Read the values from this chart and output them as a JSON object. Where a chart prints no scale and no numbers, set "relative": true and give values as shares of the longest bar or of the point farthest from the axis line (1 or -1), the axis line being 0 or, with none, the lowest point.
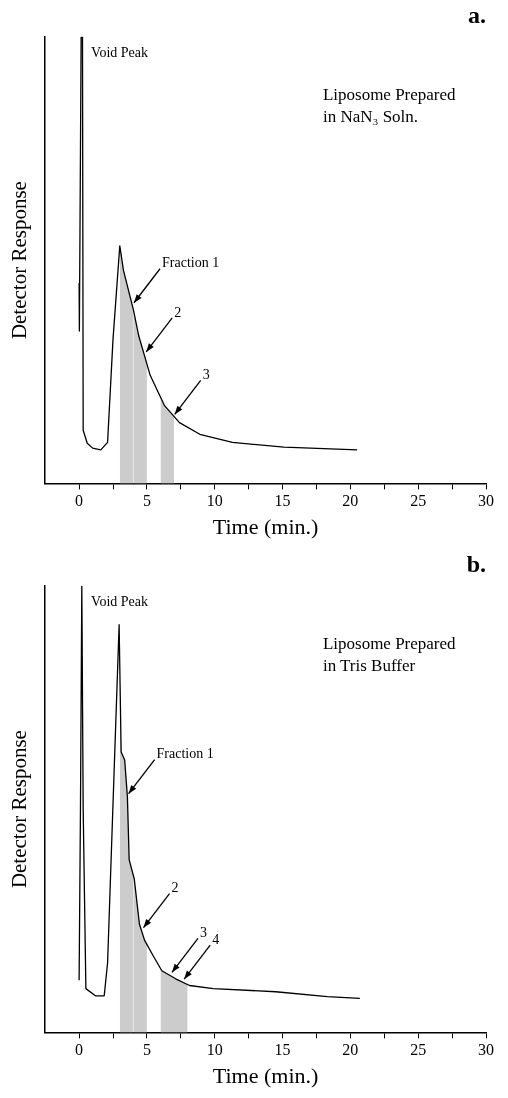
{
  "chart_data": [
    {
      "type": "line",
      "title": "a.",
      "xlabel": "Time (min.)",
      "ylabel": "Detector Response",
      "relative": true,
      "grid": false,
      "legend": false,
      "marker": "none",
      "line_style": "solid",
      "x": [
        0,
        0.02,
        0.15,
        0.25,
        0.3,
        0.6,
        1.0,
        1.6,
        2.1,
        2.5,
        3.0,
        3.27,
        4.0,
        4.4,
        5.24,
        6.3,
        7.4,
        8.9,
        11.3,
        15.1,
        20.5
      ],
      "series": [
        {
          "color": "#000000",
          "values": [
            0.448,
            0.341,
            1.0,
            1.0,
            0.119,
            0.09,
            0.079,
            0.075,
            0.092,
            0.323,
            0.532,
            0.477,
            0.389,
            0.33,
            0.242,
            0.174,
            0.136,
            0.11,
            0.092,
            0.081,
            0.075
          ]
        },
        {
          "type": "area",
          "color": "#cccccc",
          "x": [
            3,
            3.27,
            4
          ],
          "values": [
            0.532,
            0.477,
            0.389
          ]
        },
        {
          "type": "area",
          "color": "#cccccc",
          "x": [
            4,
            4.4,
            5
          ],
          "values": [
            0.389,
            0.33,
            0.263
          ]
        },
        {
          "type": "area",
          "color": "#cccccc",
          "x": [
            6,
            6.3,
            7
          ],
          "values": [
            0.19,
            0.174,
            0.15
          ]
        }
      ],
      "xlim": [
        -2.5,
        30
      ],
      "xticks": [
        0,
        {
          "value": 2.5,
          "label": null
        },
        5,
        {
          "value": 7.5,
          "label": null
        },
        10,
        {
          "value": 12.5,
          "label": null
        },
        15,
        {
          "value": 17.5,
          "label": null
        },
        20,
        {
          "value": 22.5,
          "label": null
        },
        25,
        {
          "value": 27.5,
          "label": null
        },
        30
      ],
      "annotations": [
        "Void Peak",
        "Liposome Prepared in NaN₃ Soln.",
        {
          "text": "Fraction 1",
          "x": 3.9,
          "y": 0.4
        },
        {
          "text": "2",
          "x": 4.8,
          "y": 0.29
        },
        {
          "text": "3",
          "x": 6.9,
          "y": 0.15
        }
      ]
    },
    {
      "type": "line",
      "title": "b.",
      "xlabel": "Time (min.)",
      "ylabel": "Detector Response",
      "relative": true,
      "grid": false,
      "legend": false,
      "marker": "none",
      "line_style": "solid",
      "x": [
        0,
        0.1,
        0.2,
        0.3,
        0.5,
        1.2,
        1.85,
        2.1,
        2.95,
        3.1,
        3.36,
        3.56,
        3.69,
        4.07,
        4.45,
        4.83,
        5.47,
        6.1,
        7.12,
        8.14,
        9.9,
        14.5,
        18.3,
        20.7
      ],
      "series": [
        {
          "color": "#000000",
          "values": [
            0.117,
            0.5,
            1.0,
            0.5,
            0.098,
            0.082,
            0.082,
            0.156,
            0.913,
            0.628,
            0.61,
            0.528,
            0.387,
            0.343,
            0.242,
            0.206,
            0.171,
            0.138,
            0.12,
            0.105,
            0.098,
            0.091,
            0.08,
            0.076
          ]
        },
        {
          "type": "area",
          "color": "#cccccc",
          "x": [
            3,
            3.1,
            3.36,
            3.56,
            3.69,
            4
          ],
          "values": [
            0.82,
            0.628,
            0.61,
            0.528,
            0.387,
            0.35
          ]
        },
        {
          "type": "area",
          "color": "#cccccc",
          "x": [
            4,
            4.07,
            4.45,
            4.83,
            5
          ],
          "values": [
            0.35,
            0.343,
            0.242,
            0.206,
            0.197
          ]
        },
        {
          "type": "area",
          "color": "#cccccc",
          "x": [
            6,
            6.1,
            7,
            7.12,
            8
          ],
          "values": [
            0.143,
            0.138,
            0.122,
            0.12,
            0.107
          ]
        }
      ],
      "xlim": [
        -2.5,
        30
      ],
      "xticks": [
        0,
        {
          "value": 2.5,
          "label": null
        },
        5,
        {
          "value": 7.5,
          "label": null
        },
        10,
        {
          "value": 12.5,
          "label": null
        },
        15,
        {
          "value": 17.5,
          "label": null
        },
        20,
        {
          "value": 22.5,
          "label": null
        },
        25,
        {
          "value": 27.5,
          "label": null
        },
        30
      ],
      "annotations": [
        "Void Peak",
        "Liposome Prepared in Tris Buffer",
        {
          "text": "Fraction 1",
          "x": 3.5,
          "y": 0.53
        },
        {
          "text": "2",
          "x": 4.6,
          "y": 0.23
        },
        {
          "text": "3",
          "x": 6.7,
          "y": 0.13
        },
        {
          "text": "4",
          "x": 7.6,
          "y": 0.115
        }
      ]
    }
  ]
}
